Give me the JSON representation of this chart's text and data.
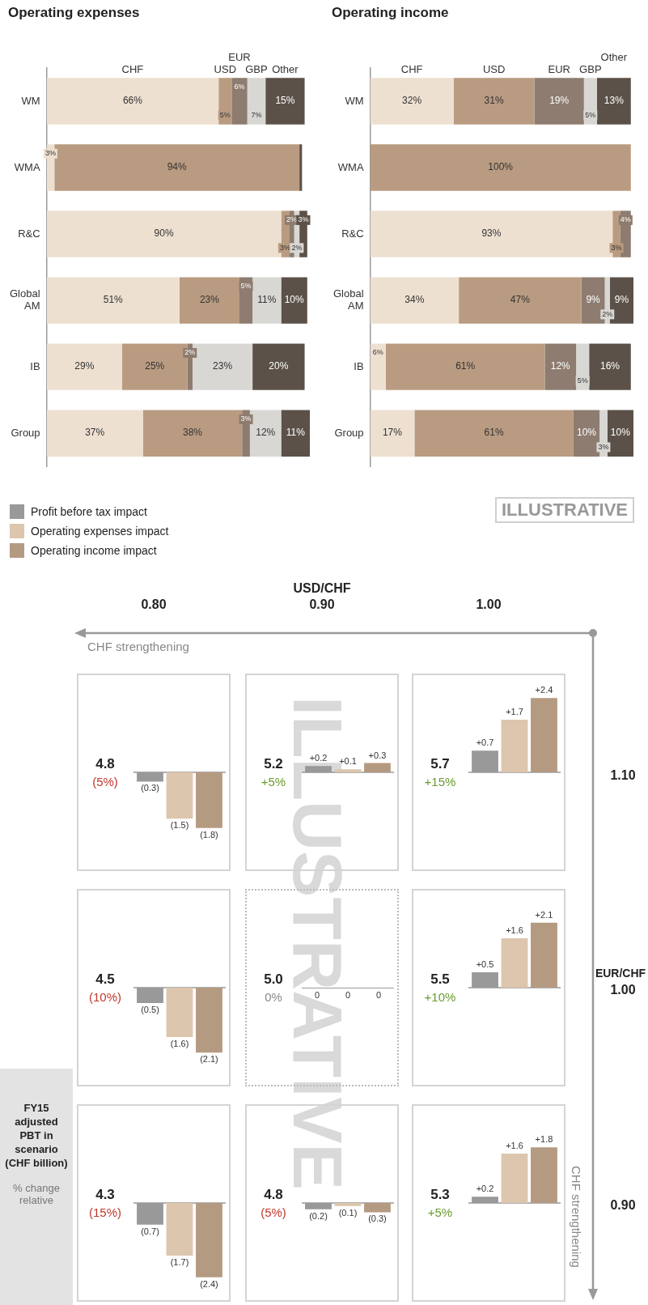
{
  "chart_data": [
    {
      "type": "bar",
      "title": "Operating income",
      "stacked": true,
      "orientation": "horizontal",
      "legend": "top",
      "tick_labels": "y",
      "categories": [
        "WM",
        "WMA",
        "R&C",
        "Global AM",
        "IB",
        "Group"
      ],
      "series": [
        {
          "name": "CHF",
          "color": "#ede0d0",
          "values": [
            32,
            0,
            93,
            34,
            6,
            17
          ],
          "value_labels": [
            "32%",
            null,
            "93%",
            "34%",
            "6%",
            "17%"
          ]
        },
        {
          "name": "USD",
          "color": "#b99b81",
          "values": [
            31,
            100,
            3,
            47,
            61,
            61
          ],
          "value_labels": [
            "31%",
            "100%",
            "3%",
            "47%",
            "61%",
            "61%"
          ]
        },
        {
          "name": "EUR",
          "color": "#8d7c6f",
          "values": [
            19,
            0,
            4,
            9,
            12,
            10
          ],
          "value_labels": [
            "19%",
            null,
            "4%",
            "9%",
            "12%",
            "10%"
          ]
        },
        {
          "name": "GBP",
          "color": "#d9d7d4",
          "values": [
            5,
            0,
            0,
            2,
            5,
            3
          ],
          "value_labels": [
            "5%",
            null,
            null,
            "2%",
            "5%",
            "3%"
          ]
        },
        {
          "name": "Other",
          "color": "#5b5148",
          "values": [
            13,
            0,
            0,
            9,
            16,
            10
          ],
          "value_labels": [
            "13%",
            null,
            null,
            "9%",
            "16%",
            "10%"
          ]
        }
      ]
    },
    {
      "type": "bar",
      "title": "Operating expenses",
      "stacked": true,
      "orientation": "horizontal",
      "legend": "top",
      "tick_labels": "y",
      "categories": [
        "WM",
        "WMA",
        "R&C",
        "Global AM",
        "IB",
        "Group"
      ],
      "series": [
        {
          "name": "CHF",
          "color": "#ede0d0",
          "values": [
            66,
            3,
            90,
            51,
            29,
            37
          ],
          "value_labels": [
            "66%",
            "3%",
            "90%",
            "51%",
            "29%",
            "37%"
          ]
        },
        {
          "name": "USD",
          "color": "#b99b81",
          "values": [
            5,
            94,
            3,
            23,
            25,
            38
          ],
          "value_labels": [
            "5%",
            "94%",
            "3%",
            "23%",
            "25%",
            "38%"
          ]
        },
        {
          "name": "EUR",
          "color": "#8d7c6f",
          "values": [
            6,
            0,
            2,
            5,
            2,
            3
          ],
          "value_labels": [
            "6%",
            null,
            "2%",
            "5%",
            "2%",
            "3%"
          ]
        },
        {
          "name": "GBP",
          "color": "#d9d7d4",
          "values": [
            7,
            0,
            2,
            11,
            23,
            12
          ],
          "value_labels": [
            "7%",
            null,
            "2%",
            "11%",
            "23%",
            "12%"
          ]
        },
        {
          "name": "Other",
          "color": "#5b5148",
          "values": [
            15,
            1,
            3,
            10,
            20,
            11
          ],
          "value_labels": [
            "15%",
            null,
            "3%",
            "10%",
            "20%",
            "11%"
          ]
        }
      ]
    },
    {
      "type": "bar",
      "tick_labels": false,
      "categories": [
        null
      ],
      "annotations": [
        "5.7",
        "+15%"
      ],
      "series": [
        {
          "color": "#999999",
          "values": [
            0.7
          ],
          "value_labels": [
            "+0.7"
          ]
        },
        {
          "color": "#dcc6ad",
          "values": [
            1.7
          ],
          "value_labels": [
            "+1.7"
          ]
        },
        {
          "color": "#b59a82",
          "values": [
            2.4
          ],
          "value_labels": [
            "+2.4"
          ]
        }
      ]
    },
    {
      "type": "bar",
      "tick_labels": false,
      "categories": [
        null
      ],
      "annotations": [
        "5.5",
        "+10%"
      ],
      "series": [
        {
          "color": "#999999",
          "values": [
            0.5
          ],
          "value_labels": [
            "+0.5"
          ]
        },
        {
          "color": "#dcc6ad",
          "values": [
            1.6
          ],
          "value_labels": [
            "+1.6"
          ]
        },
        {
          "color": "#b59a82",
          "values": [
            2.1
          ],
          "value_labels": [
            "+2.1"
          ]
        }
      ]
    },
    {
      "type": "bar",
      "tick_labels": false,
      "categories": [
        null
      ],
      "annotations": [
        "5.3",
        "+5%"
      ],
      "series": [
        {
          "color": "#999999",
          "values": [
            0.2
          ],
          "value_labels": [
            "+0.2"
          ]
        },
        {
          "color": "#dcc6ad",
          "values": [
            1.6
          ],
          "value_labels": [
            "+1.6"
          ]
        },
        {
          "color": "#b59a82",
          "values": [
            1.8
          ],
          "value_labels": [
            "+1.8"
          ]
        }
      ]
    },
    {
      "type": "bar",
      "tick_labels": false,
      "categories": [
        null
      ],
      "annotations": [
        "5.2",
        "+5%"
      ],
      "series": [
        {
          "color": "#999999",
          "values": [
            0.2
          ],
          "value_labels": [
            "+0.2"
          ]
        },
        {
          "color": "#dcc6ad",
          "values": [
            0.1
          ],
          "value_labels": [
            "+0.1"
          ]
        },
        {
          "color": "#b59a82",
          "values": [
            0.3
          ],
          "value_labels": [
            "+0.3"
          ]
        }
      ]
    },
    {
      "type": "other",
      "annotations": [
        "5.0",
        "0%",
        "0",
        "0",
        "0"
      ]
    },
    {
      "type": "bar",
      "tick_labels": false,
      "categories": [
        null
      ],
      "annotations": [
        "4.8",
        "(5%)"
      ],
      "series": [
        {
          "color": "#999999",
          "values": [
            -0.2
          ],
          "value_labels": [
            "(0.2)"
          ]
        },
        {
          "color": "#dcc6ad",
          "values": [
            -0.1
          ],
          "value_labels": [
            "(0.1)"
          ]
        },
        {
          "color": "#b59a82",
          "values": [
            -0.3
          ],
          "value_labels": [
            "(0.3)"
          ]
        }
      ]
    },
    {
      "type": "bar",
      "tick_labels": false,
      "categories": [
        null
      ],
      "legend": "top left",
      "annotations": [
        "4.8",
        "(5%)"
      ],
      "series": [
        {
          "name": "Profit before tax impact",
          "color": "#999999",
          "values": [
            -0.3
          ],
          "value_labels": [
            "(0.3)"
          ]
        },
        {
          "name": "Operating expenses impact",
          "color": "#dcc6ad",
          "values": [
            -1.5
          ],
          "value_labels": [
            "(1.5)"
          ]
        },
        {
          "name": "Operating income impact",
          "color": "#b59a82",
          "values": [
            -1.8
          ],
          "value_labels": [
            "(1.8)"
          ]
        }
      ]
    },
    {
      "type": "bar",
      "tick_labels": false,
      "categories": [
        null
      ],
      "annotations": [
        "4.5",
        "(10%)"
      ],
      "series": [
        {
          "color": "#999999",
          "values": [
            -0.5
          ],
          "value_labels": [
            "(0.5)"
          ]
        },
        {
          "color": "#dcc6ad",
          "values": [
            -1.6
          ],
          "value_labels": [
            "(1.6)"
          ]
        },
        {
          "color": "#b59a82",
          "values": [
            -2.1
          ],
          "value_labels": [
            "(2.1)"
          ]
        }
      ]
    },
    {
      "type": "bar",
      "tick_labels": false,
      "categories": [
        null
      ],
      "annotations": [
        "4.3",
        "(15%)"
      ],
      "series": [
        {
          "color": "#999999",
          "values": [
            -0.7
          ],
          "value_labels": [
            "(0.7)"
          ]
        },
        {
          "color": "#dcc6ad",
          "values": [
            -1.7
          ],
          "value_labels": [
            "(1.7)"
          ]
        },
        {
          "color": "#b59a82",
          "values": [
            -2.4
          ],
          "value_labels": [
            "(2.4)"
          ]
        }
      ]
    },
    {
      "type": "other",
      "title": "ILLUSTRATIVE",
      "xlabel": "EUR/CHF",
      "ylabel": "USD/CHF",
      "categories": [
        "1.10",
        "1.00",
        "0.90"
      ],
      "y_categories": [
        "1.00",
        "0.90",
        "0.80"
      ],
      "annotations": [
        "CHF strengthening",
        "CHF strengthening",
        "FY15 adjusted PBT in scenario (CHF billion)",
        "% change relative",
        "ILLUSTRATIVE"
      ]
    }
  ]
}
